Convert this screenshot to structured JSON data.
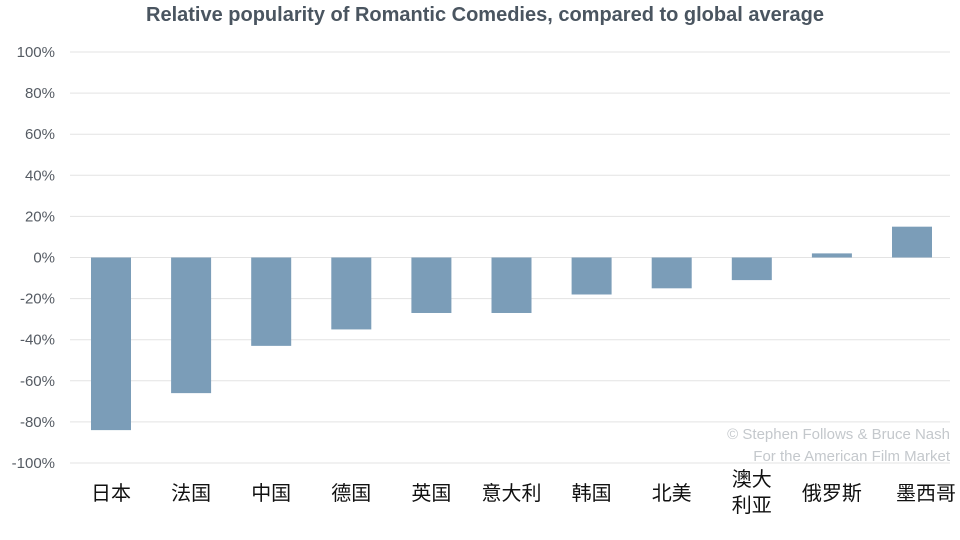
{
  "chart_data": {
    "type": "bar",
    "title": "Relative popularity of Romantic Comedies, compared to global average",
    "categories": [
      "日本",
      "法国",
      "中国",
      "德国",
      "英国",
      "意大利",
      "韩国",
      "北美",
      "澳大利亚",
      "俄罗斯",
      "墨西哥"
    ],
    "category_lines": [
      [
        "日本"
      ],
      [
        "法国"
      ],
      [
        "中国"
      ],
      [
        "德国"
      ],
      [
        "英国"
      ],
      [
        "意大利"
      ],
      [
        "韩国"
      ],
      [
        "北美"
      ],
      [
        "澳大",
        "利亚"
      ],
      [
        "俄罗斯"
      ],
      [
        "墨西哥"
      ]
    ],
    "values": [
      -84,
      -66,
      -43,
      -35,
      -27,
      -27,
      -18,
      -15,
      -11,
      2,
      15
    ],
    "unit": "%",
    "ylim": [
      -100,
      100
    ],
    "yticks": [
      100,
      80,
      60,
      40,
      20,
      0,
      -20,
      -40,
      -60,
      -80,
      -100
    ],
    "ytick_labels": [
      "100%",
      "80%",
      "60%",
      "40%",
      "20%",
      "0%",
      "-20%",
      "-40%",
      "-60%",
      "-80%",
      "-100%"
    ],
    "grid": true,
    "bar_color": "#7b9db8",
    "xlabel": "",
    "ylabel": ""
  },
  "credit": {
    "line1": "© Stephen Follows & Bruce Nash",
    "line2": "For the American Film Market"
  }
}
